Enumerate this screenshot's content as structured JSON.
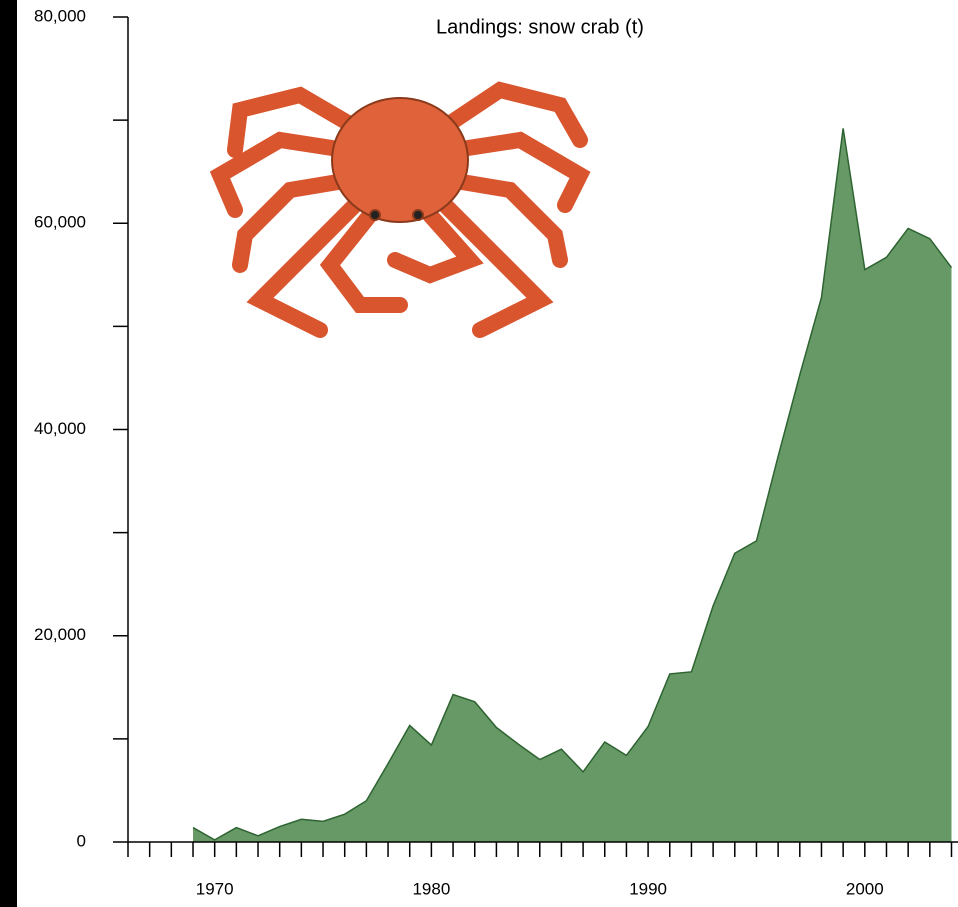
{
  "chart_data": {
    "type": "area",
    "title": "Landings: snow crab (t)",
    "x": [
      1969,
      1970,
      1971,
      1972,
      1973,
      1974,
      1975,
      1976,
      1977,
      1978,
      1979,
      1980,
      1981,
      1982,
      1983,
      1984,
      1985,
      1986,
      1987,
      1988,
      1989,
      1990,
      1991,
      1992,
      1993,
      1994,
      1995,
      1996,
      1997,
      1998,
      1999,
      2000,
      2001,
      2002,
      2003,
      2004
    ],
    "values": [
      1400,
      200,
      1400,
      600,
      1500,
      2200,
      2000,
      2700,
      4000,
      7600,
      11300,
      9400,
      14300,
      13600,
      11100,
      9500,
      8000,
      9000,
      6800,
      9700,
      8400,
      11200,
      16300,
      16500,
      22900,
      28000,
      29200,
      37400,
      45300,
      52800,
      69200,
      55500,
      56700,
      59500,
      58500,
      55700
    ],
    "color": "#669966",
    "line_color": "#2e6432",
    "xlim": [
      1966,
      2004.3
    ],
    "xticks": [
      1970,
      1980,
      1990,
      2000
    ],
    "xminor_ticks": [
      1966,
      1967,
      1968,
      1969,
      1971,
      1972,
      1973,
      1974,
      1975,
      1976,
      1977,
      1978,
      1979,
      1981,
      1982,
      1983,
      1984,
      1985,
      1986,
      1987,
      1988,
      1989,
      1991,
      1992,
      1993,
      1994,
      1995,
      1996,
      1997,
      1998,
      1999,
      2001,
      2002,
      2003,
      2004
    ],
    "ylim": [
      0,
      80000
    ],
    "yticks": [
      {
        "value": 0,
        "label": "0"
      },
      {
        "value": 20000,
        "label": "20,000"
      },
      {
        "value": 40000,
        "label": "40,000"
      },
      {
        "value": 60000,
        "label": "60,000"
      },
      {
        "value": 80000,
        "label": "80,000"
      }
    ],
    "yminor_ticks": [
      10000,
      30000,
      50000,
      70000
    ],
    "grid": false
  }
}
